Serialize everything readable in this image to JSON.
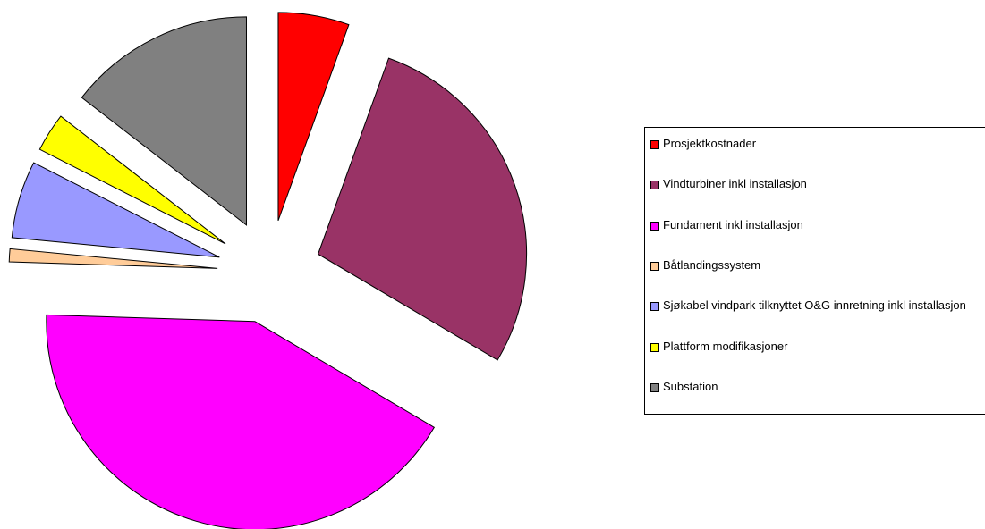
{
  "chart_data": {
    "type": "pie",
    "categories": [
      "Prosjektkostnader",
      "Vindturbiner inkl installasjon",
      "Fundament inkl installasjon",
      "Båtlandingssystem",
      "Sjøkabel vindpark tilknyttet O&G innretning inkl installasjon",
      "Plattform modifikasjoner",
      "Substation"
    ],
    "values": [
      5.5,
      28,
      42,
      1,
      6,
      3,
      14.5
    ],
    "colors": [
      "#ff0000",
      "#993366",
      "#ff00ff",
      "#ffcc99",
      "#9999ff",
      "#ffff00",
      "#808080"
    ],
    "exploded": true,
    "legend": "right"
  }
}
